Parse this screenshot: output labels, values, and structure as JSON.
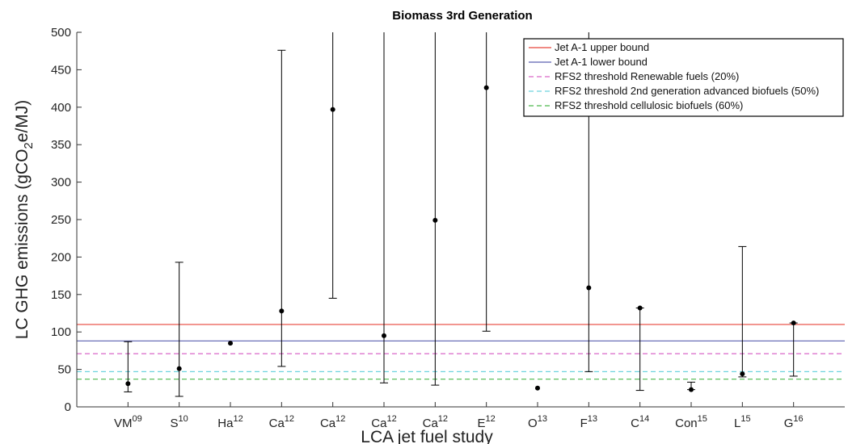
{
  "chart_data": {
    "type": "scatter",
    "title": "Biomass 3rd Generation",
    "xlabel": "LCA jet fuel study",
    "ylabel_main": "LC GHG emissions (gCO",
    "ylabel_sub": "2",
    "ylabel_tail": "e/MJ)",
    "ylim": [
      0,
      500
    ],
    "yticks": [
      0,
      50,
      100,
      150,
      200,
      250,
      300,
      350,
      400,
      450,
      500
    ],
    "grid": false,
    "legend_position": "top-right",
    "categories": [
      {
        "base": "VM",
        "sup": "09"
      },
      {
        "base": "S",
        "sup": "10"
      },
      {
        "base": "Ha",
        "sup": "12"
      },
      {
        "base": "Ca",
        "sup": "12"
      },
      {
        "base": "Ca",
        "sup": "12"
      },
      {
        "base": "Ca",
        "sup": "12"
      },
      {
        "base": "Ca",
        "sup": "12"
      },
      {
        "base": "E",
        "sup": "12"
      },
      {
        "base": "O",
        "sup": "13"
      },
      {
        "base": "F",
        "sup": "13"
      },
      {
        "base": "C",
        "sup": "14"
      },
      {
        "base": "Con",
        "sup": "15"
      },
      {
        "base": "L",
        "sup": "15"
      },
      {
        "base": "G",
        "sup": "16"
      }
    ],
    "points": [
      {
        "y": 31,
        "low": 20,
        "high": 87
      },
      {
        "y": 51,
        "low": 14,
        "high": 193
      },
      {
        "y": 85,
        "low": null,
        "high": null
      },
      {
        "y": 128,
        "low": 54,
        "high": 476
      },
      {
        "y": 397,
        "low": 145,
        "high": 500
      },
      {
        "y": 95,
        "low": 32,
        "high": 500
      },
      {
        "y": 249,
        "low": 29,
        "high": 500
      },
      {
        "y": 426,
        "low": 101,
        "high": 500
      },
      {
        "y": 25,
        "low": null,
        "high": null
      },
      {
        "y": 159,
        "low": 47,
        "high": 500
      },
      {
        "y": 132,
        "low": 22,
        "high": 132
      },
      {
        "y": 23,
        "low": 23,
        "high": 33
      },
      {
        "y": 44,
        "low": 40,
        "high": 214
      },
      {
        "y": 112,
        "low": 41,
        "high": 112
      }
    ],
    "reference_lines": [
      {
        "name": "Jet A-1 upper bound",
        "value": 110,
        "color": "#e8443a",
        "dash": false
      },
      {
        "name": "Jet A-1 lower bound",
        "value": 88,
        "color": "#5a5fb0",
        "dash": false
      },
      {
        "name": "RFS2 threshold Renewable fuels (20%)",
        "value": 71,
        "color": "#d967c8",
        "dash": true
      },
      {
        "name": "RFS2 threshold 2nd generation advanced biofuels (50%)",
        "value": 47,
        "color": "#6cd2de",
        "dash": true
      },
      {
        "name": "RFS2 threshold cellulosic biofuels (60%)",
        "value": 37,
        "color": "#4bb84b",
        "dash": true
      }
    ]
  }
}
